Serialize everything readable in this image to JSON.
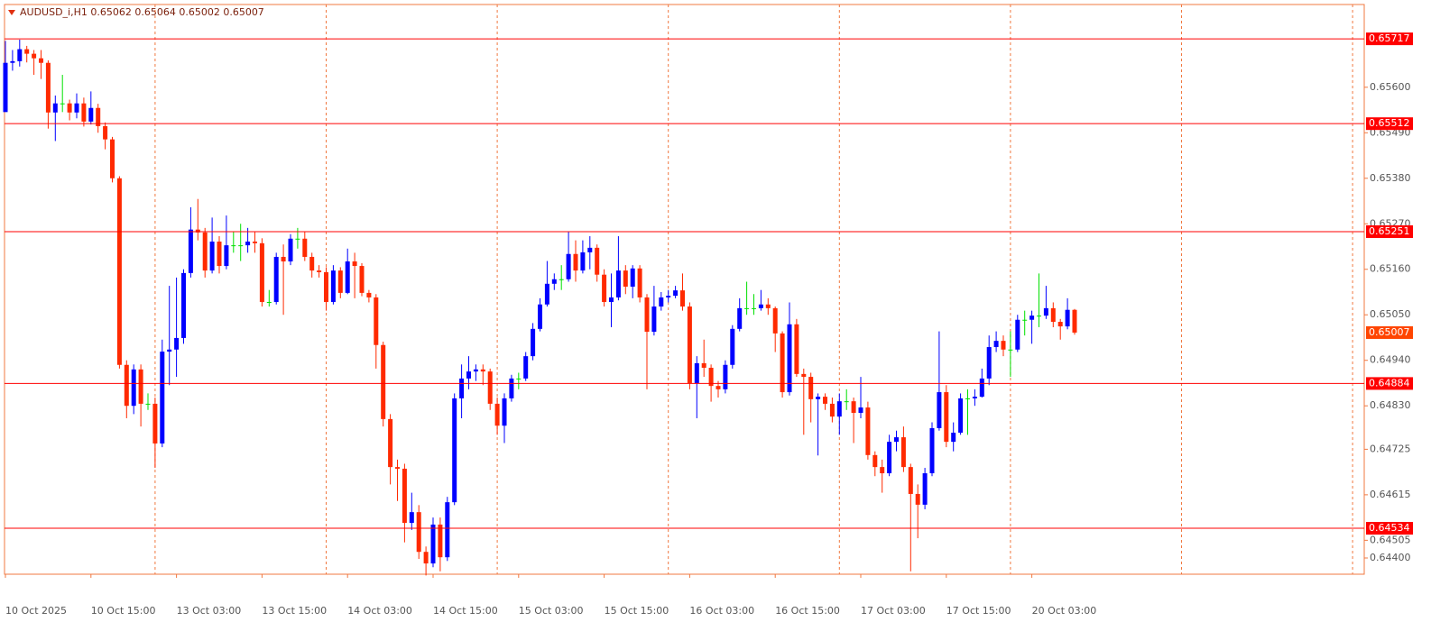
{
  "chart_data": {
    "type": "candlestick",
    "title": "AUDUSD_i,H1  0.65062 0.65064 0.65002 0.65007",
    "up_color": "#0000ff",
    "down_color": "#ff2a00",
    "doji_color": "#00e000",
    "level_color": "#ff0000",
    "current_color": "#ff4500",
    "ylim": [
      0.64423,
      0.658
    ],
    "yticks": [
      {
        "value": 0.656,
        "label": "0.65600"
      },
      {
        "value": 0.6549,
        "label": "0.65490"
      },
      {
        "value": 0.6538,
        "label": "0.65380"
      },
      {
        "value": 0.6527,
        "label": "0.65270"
      },
      {
        "value": 0.6516,
        "label": "0.65160"
      },
      {
        "value": 0.6505,
        "label": "0.65050"
      },
      {
        "value": 0.6494,
        "label": "0.64940"
      },
      {
        "value": 0.6483,
        "label": "0.64830"
      },
      0.64725,
      0.64615,
      0.64505,
      {
        "value": 0.644,
        "label": "0.64400"
      }
    ],
    "levels": [
      0.65717,
      0.65512,
      0.65251,
      0.64884,
      0.64534
    ],
    "current_price": 0.65007,
    "x_labels": [
      "10 Oct 2025",
      "10 Oct 15:00",
      "13 Oct 03:00",
      "13 Oct 15:00",
      "14 Oct 03:00",
      "14 Oct 15:00",
      "15 Oct 03:00",
      "15 Oct 15:00",
      "16 Oct 03:00",
      "16 Oct 15:00",
      "17 Oct 03:00",
      "17 Oct 15:00",
      "20 Oct 03:00"
    ],
    "ohlc": [
      [
        0.6554,
        0.65712,
        0.6555,
        0.65659
      ],
      [
        0.65659,
        0.6569,
        0.6564,
        0.65663
      ],
      [
        0.65663,
        0.65715,
        0.6565,
        0.65692
      ],
      [
        0.65692,
        0.657,
        0.6566,
        0.65681
      ],
      [
        0.65681,
        0.6569,
        0.6563,
        0.6567
      ],
      [
        0.6567,
        0.6569,
        0.6562,
        0.65659
      ],
      [
        0.65659,
        0.65665,
        0.655,
        0.65539
      ],
      [
        0.65539,
        0.6558,
        0.6547,
        0.65561
      ],
      [
        0.65561,
        0.6563,
        0.6554,
        0.65561
      ],
      [
        0.65561,
        0.6557,
        0.6552,
        0.65539
      ],
      [
        0.65539,
        0.65585,
        0.65525,
        0.65561
      ],
      [
        0.65561,
        0.65575,
        0.65505,
        0.65517
      ],
      [
        0.65517,
        0.6559,
        0.6551,
        0.6555
      ],
      [
        0.6555,
        0.6556,
        0.6549,
        0.65506
      ],
      [
        0.65506,
        0.65515,
        0.6545,
        0.65474
      ],
      [
        0.65474,
        0.6548,
        0.6537,
        0.6538
      ],
      [
        0.6538,
        0.65385,
        0.6492,
        0.64929
      ],
      [
        0.64929,
        0.6494,
        0.648,
        0.6483
      ],
      [
        0.6483,
        0.6493,
        0.6481,
        0.64918
      ],
      [
        0.64918,
        0.6493,
        0.6478,
        0.64835
      ],
      [
        0.64835,
        0.6486,
        0.6482,
        0.64835
      ],
      [
        0.64835,
        0.6485,
        0.6468,
        0.64739
      ],
      [
        0.64739,
        0.6499,
        0.6473,
        0.64961
      ],
      [
        0.64961,
        0.6512,
        0.6488,
        0.64966
      ],
      [
        0.64966,
        0.6514,
        0.649,
        0.64994
      ],
      [
        0.64994,
        0.6516,
        0.6498,
        0.65151
      ],
      [
        0.65151,
        0.6531,
        0.6514,
        0.65256
      ],
      [
        0.65256,
        0.6533,
        0.6523,
        0.65249
      ],
      [
        0.65249,
        0.6526,
        0.6514,
        0.65157
      ],
      [
        0.65157,
        0.65285,
        0.6515,
        0.65227
      ],
      [
        0.65227,
        0.6524,
        0.6515,
        0.65168
      ],
      [
        0.65168,
        0.6529,
        0.6516,
        0.65218
      ],
      [
        0.65218,
        0.6525,
        0.652,
        0.65218
      ],
      [
        0.65218,
        0.6527,
        0.6518,
        0.65218
      ],
      [
        0.65218,
        0.6526,
        0.652,
        0.65227
      ],
      [
        0.65227,
        0.6525,
        0.652,
        0.65223
      ],
      [
        0.65223,
        0.65235,
        0.6507,
        0.65081
      ],
      [
        0.65081,
        0.6511,
        0.6507,
        0.65081
      ],
      [
        0.65081,
        0.652,
        0.65075,
        0.6519
      ],
      [
        0.6519,
        0.6522,
        0.6505,
        0.65179
      ],
      [
        0.65179,
        0.65245,
        0.6517,
        0.65234
      ],
      [
        0.65234,
        0.6526,
        0.6521,
        0.65234
      ],
      [
        0.65234,
        0.6525,
        0.6518,
        0.6519
      ],
      [
        0.6519,
        0.652,
        0.6514,
        0.65157
      ],
      [
        0.65157,
        0.6517,
        0.6514,
        0.65153
      ],
      [
        0.65153,
        0.65165,
        0.6506,
        0.65081
      ],
      [
        0.65081,
        0.6517,
        0.65075,
        0.65157
      ],
      [
        0.65157,
        0.65165,
        0.6509,
        0.65103
      ],
      [
        0.65103,
        0.6521,
        0.651,
        0.65179
      ],
      [
        0.65179,
        0.652,
        0.6509,
        0.65168
      ],
      [
        0.65168,
        0.65175,
        0.65095,
        0.65103
      ],
      [
        0.65103,
        0.6511,
        0.6508,
        0.65092
      ],
      [
        0.65092,
        0.651,
        0.6492,
        0.64977
      ],
      [
        0.64977,
        0.64985,
        0.6478,
        0.64798
      ],
      [
        0.64798,
        0.6481,
        0.6464,
        0.64682
      ],
      [
        0.64682,
        0.647,
        0.646,
        0.64678
      ],
      [
        0.64678,
        0.6469,
        0.645,
        0.64547
      ],
      [
        0.64547,
        0.6462,
        0.6453,
        0.64573
      ],
      [
        0.64573,
        0.6459,
        0.6446,
        0.64477
      ],
      [
        0.64477,
        0.6449,
        0.6442,
        0.64449
      ],
      [
        0.64449,
        0.6456,
        0.6444,
        0.64543
      ],
      [
        0.64543,
        0.6456,
        0.6443,
        0.64464
      ],
      [
        0.64464,
        0.6461,
        0.64455,
        0.64597
      ],
      [
        0.64597,
        0.6486,
        0.6459,
        0.64848
      ],
      [
        0.64848,
        0.6493,
        0.648,
        0.64896
      ],
      [
        0.64896,
        0.6495,
        0.6487,
        0.64913
      ],
      [
        0.64913,
        0.6493,
        0.6489,
        0.64918
      ],
      [
        0.64918,
        0.6493,
        0.6488,
        0.64913
      ],
      [
        0.64913,
        0.6492,
        0.6482,
        0.64835
      ],
      [
        0.64835,
        0.6485,
        0.6476,
        0.64782
      ],
      [
        0.64782,
        0.6486,
        0.6474,
        0.64848
      ],
      [
        0.64848,
        0.64905,
        0.6484,
        0.64896
      ],
      [
        0.64896,
        0.6491,
        0.6487,
        0.64896
      ],
      [
        0.64896,
        0.6496,
        0.6489,
        0.6495
      ],
      [
        0.6495,
        0.6503,
        0.6494,
        0.65016
      ],
      [
        0.65016,
        0.6509,
        0.6501,
        0.65075
      ],
      [
        0.65075,
        0.6518,
        0.6507,
        0.65125
      ],
      [
        0.65125,
        0.6515,
        0.6511,
        0.65136
      ],
      [
        0.65136,
        0.6517,
        0.6511,
        0.65136
      ],
      [
        0.65136,
        0.6525,
        0.6513,
        0.65197
      ],
      [
        0.65197,
        0.6523,
        0.6513,
        0.65157
      ],
      [
        0.65157,
        0.6523,
        0.6515,
        0.65201
      ],
      [
        0.65201,
        0.6524,
        0.6516,
        0.65212
      ],
      [
        0.65212,
        0.6522,
        0.6513,
        0.65147
      ],
      [
        0.65147,
        0.6516,
        0.6507,
        0.65081
      ],
      [
        0.65081,
        0.6515,
        0.6502,
        0.65092
      ],
      [
        0.65092,
        0.6524,
        0.65085,
        0.65157
      ],
      [
        0.65157,
        0.6517,
        0.651,
        0.65118
      ],
      [
        0.65118,
        0.6517,
        0.6509,
        0.65162
      ],
      [
        0.65162,
        0.6517,
        0.6508,
        0.65092
      ],
      [
        0.65092,
        0.651,
        0.6487,
        0.65009
      ],
      [
        0.65009,
        0.6512,
        0.65,
        0.6507
      ],
      [
        0.6507,
        0.65105,
        0.6506,
        0.65092
      ],
      [
        0.65092,
        0.6511,
        0.6508,
        0.65096
      ],
      [
        0.65096,
        0.6512,
        0.6509,
        0.65109
      ],
      [
        0.65109,
        0.6515,
        0.6506,
        0.6507
      ],
      [
        0.6507,
        0.6508,
        0.6487,
        0.64885
      ],
      [
        0.64885,
        0.6495,
        0.648,
        0.64933
      ],
      [
        0.64933,
        0.6499,
        0.649,
        0.64922
      ],
      [
        0.64922,
        0.6493,
        0.6484,
        0.64878
      ],
      [
        0.64878,
        0.6489,
        0.6485,
        0.6487
      ],
      [
        0.6487,
        0.6494,
        0.6486,
        0.64929
      ],
      [
        0.64929,
        0.65025,
        0.6492,
        0.65016
      ],
      [
        0.65016,
        0.6509,
        0.6501,
        0.65066
      ],
      [
        0.65066,
        0.6513,
        0.6505,
        0.65066
      ],
      [
        0.65066,
        0.651,
        0.6505,
        0.65066
      ],
      [
        0.65066,
        0.6511,
        0.6506,
        0.65075
      ],
      [
        0.65075,
        0.6509,
        0.6505,
        0.65066
      ],
      [
        0.65066,
        0.6507,
        0.6496,
        0.65005
      ],
      [
        0.65005,
        0.6501,
        0.6485,
        0.64863
      ],
      [
        0.64863,
        0.6508,
        0.64855,
        0.65027
      ],
      [
        0.65027,
        0.6504,
        0.649,
        0.64907
      ],
      [
        0.64907,
        0.6492,
        0.6476,
        0.649
      ],
      [
        0.649,
        0.6491,
        0.6479,
        0.64846
      ],
      [
        0.64846,
        0.6486,
        0.6471,
        0.64852
      ],
      [
        0.64852,
        0.6486,
        0.6482,
        0.64835
      ],
      [
        0.64835,
        0.6485,
        0.6479,
        0.64804
      ],
      [
        0.64804,
        0.6486,
        0.6476,
        0.64841
      ],
      [
        0.64841,
        0.6487,
        0.6482,
        0.64841
      ],
      [
        0.64841,
        0.6485,
        0.6474,
        0.64813
      ],
      [
        0.64813,
        0.649,
        0.648,
        0.64826
      ],
      [
        0.64826,
        0.6484,
        0.647,
        0.64711
      ],
      [
        0.64711,
        0.6472,
        0.6466,
        0.64682
      ],
      [
        0.64682,
        0.647,
        0.6462,
        0.64667
      ],
      [
        0.64667,
        0.6476,
        0.6466,
        0.64743
      ],
      [
        0.64743,
        0.6477,
        0.6472,
        0.64754
      ],
      [
        0.64754,
        0.6478,
        0.6467,
        0.64682
      ],
      [
        0.64682,
        0.6469,
        0.6443,
        0.64617
      ],
      [
        0.64617,
        0.6464,
        0.6451,
        0.64591
      ],
      [
        0.64591,
        0.6468,
        0.6458,
        0.64667
      ],
      [
        0.64667,
        0.6479,
        0.6466,
        0.64776
      ],
      [
        0.64776,
        0.6501,
        0.6477,
        0.64863
      ],
      [
        0.64863,
        0.6488,
        0.6473,
        0.64743
      ],
      [
        0.64743,
        0.6479,
        0.6472,
        0.64765
      ],
      [
        0.64765,
        0.6486,
        0.6476,
        0.64848
      ],
      [
        0.64848,
        0.6487,
        0.6476,
        0.64848
      ],
      [
        0.64848,
        0.6487,
        0.6483,
        0.64852
      ],
      [
        0.64852,
        0.6492,
        0.6485,
        0.64896
      ],
      [
        0.64896,
        0.65,
        0.6488,
        0.64972
      ],
      [
        0.64972,
        0.6501,
        0.6496,
        0.64987
      ],
      [
        0.64987,
        0.65,
        0.6495,
        0.64966
      ],
      [
        0.64966,
        0.6501,
        0.649,
        0.64966
      ],
      [
        0.64966,
        0.6505,
        0.6496,
        0.65038
      ],
      [
        0.65038,
        0.6506,
        0.65,
        0.65038
      ],
      [
        0.65038,
        0.6506,
        0.6498,
        0.65048
      ],
      [
        0.65048,
        0.6515,
        0.6502,
        0.65048
      ],
      [
        0.65048,
        0.6512,
        0.6504,
        0.65066
      ],
      [
        0.65066,
        0.6508,
        0.6502,
        0.65033
      ],
      [
        0.65033,
        0.6504,
        0.6499,
        0.65022
      ],
      [
        0.65022,
        0.6509,
        0.65015,
        0.65062
      ],
      [
        0.65062,
        0.65064,
        0.65002,
        0.65007
      ]
    ]
  }
}
